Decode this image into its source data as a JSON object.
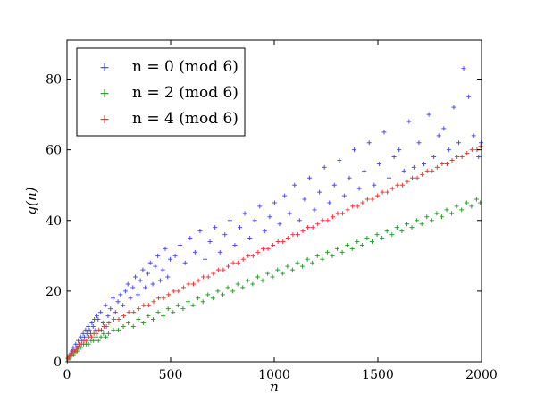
{
  "chart_data": {
    "type": "scatter",
    "title": "",
    "xlabel": "n",
    "ylabel": "g(n)",
    "xlim": [
      0,
      2000
    ],
    "ylim": [
      0,
      91
    ],
    "xticks": [
      0,
      500,
      1000,
      1500,
      2000
    ],
    "yticks": [
      0,
      20,
      40,
      60,
      80
    ],
    "xtick_labels": [
      "0",
      "500",
      "1000",
      "1500",
      "2000"
    ],
    "ytick_labels": [
      "0",
      "20",
      "40",
      "60",
      "80"
    ],
    "grid": false,
    "legend_position": "top-left",
    "marker": "+",
    "series": [
      {
        "name": "n = 0 (mod 6)",
        "color": "#4d4dff",
        "x": [
          6,
          12,
          18,
          24,
          30,
          36,
          42,
          48,
          54,
          60,
          66,
          72,
          78,
          84,
          90,
          96,
          102,
          108,
          114,
          120,
          126,
          132,
          138,
          144,
          150,
          162,
          174,
          186,
          198,
          210,
          222,
          234,
          246,
          258,
          270,
          282,
          294,
          306,
          318,
          330,
          342,
          354,
          366,
          378,
          390,
          402,
          414,
          426,
          438,
          450,
          462,
          474,
          486,
          498,
          522,
          546,
          570,
          594,
          618,
          642,
          666,
          690,
          714,
          738,
          762,
          786,
          810,
          834,
          858,
          882,
          906,
          930,
          954,
          978,
          1002,
          1026,
          1050,
          1074,
          1098,
          1122,
          1146,
          1170,
          1194,
          1218,
          1242,
          1266,
          1290,
          1314,
          1338,
          1362,
          1386,
          1410,
          1434,
          1458,
          1482,
          1506,
          1530,
          1554,
          1578,
          1602,
          1626,
          1650,
          1674,
          1698,
          1722,
          1746,
          1770,
          1794,
          1818,
          1842,
          1866,
          1890,
          1914,
          1938,
          1962,
          1986,
          1998
        ],
        "y": [
          1,
          2,
          2,
          3,
          4,
          3,
          5,
          4,
          6,
          5,
          7,
          6,
          8,
          7,
          9,
          8,
          10,
          9,
          8,
          11,
          10,
          12,
          9,
          13,
          12,
          14,
          11,
          16,
          13,
          15,
          18,
          14,
          17,
          19,
          16,
          20,
          22,
          18,
          21,
          24,
          19,
          23,
          26,
          21,
          25,
          28,
          22,
          27,
          30,
          23,
          26,
          32,
          24,
          29,
          30,
          33,
          28,
          35,
          31,
          37,
          29,
          34,
          38,
          31,
          36,
          40,
          33,
          38,
          42,
          35,
          40,
          44,
          37,
          41,
          45,
          39,
          47,
          42,
          50,
          40,
          46,
          52,
          43,
          48,
          55,
          45,
          50,
          57,
          47,
          52,
          60,
          49,
          54,
          62,
          50,
          56,
          65,
          52,
          58,
          60,
          54,
          68,
          55,
          62,
          56,
          70,
          58,
          64,
          66,
          60,
          72,
          62,
          83,
          75,
          64,
          58,
          62
        ]
      },
      {
        "name": "n = 2 (mod 6)",
        "color": "#2ca02c",
        "x": [
          2,
          8,
          14,
          20,
          26,
          32,
          38,
          44,
          50,
          56,
          68,
          80,
          92,
          104,
          116,
          128,
          140,
          152,
          164,
          176,
          188,
          200,
          224,
          248,
          272,
          296,
          320,
          344,
          368,
          392,
          416,
          440,
          464,
          488,
          512,
          536,
          560,
          584,
          608,
          632,
          656,
          680,
          704,
          728,
          752,
          776,
          800,
          824,
          848,
          872,
          896,
          920,
          944,
          968,
          992,
          1016,
          1040,
          1064,
          1088,
          1112,
          1136,
          1160,
          1184,
          1208,
          1232,
          1256,
          1280,
          1304,
          1328,
          1352,
          1376,
          1400,
          1424,
          1448,
          1472,
          1496,
          1520,
          1544,
          1568,
          1592,
          1616,
          1640,
          1664,
          1688,
          1712,
          1736,
          1760,
          1784,
          1808,
          1832,
          1856,
          1880,
          1904,
          1928,
          1952,
          1976,
          1994
        ],
        "y": [
          0,
          1,
          1,
          2,
          2,
          2,
          3,
          3,
          3,
          4,
          4,
          5,
          5,
          5,
          6,
          6,
          7,
          6,
          7,
          8,
          7,
          8,
          9,
          9,
          10,
          11,
          10,
          12,
          11,
          13,
          12,
          14,
          13,
          15,
          14,
          16,
          15,
          17,
          16,
          18,
          17,
          19,
          18,
          20,
          19,
          21,
          20,
          22,
          21,
          23,
          22,
          24,
          23,
          25,
          24,
          26,
          25,
          27,
          26,
          28,
          27,
          29,
          28,
          30,
          29,
          31,
          30,
          32,
          31,
          33,
          32,
          34,
          33,
          35,
          34,
          36,
          35,
          37,
          36,
          38,
          37,
          39,
          38,
          40,
          39,
          41,
          40,
          42,
          41,
          43,
          42,
          44,
          43,
          45,
          44,
          46,
          45
        ]
      },
      {
        "name": "n = 4 (mod 6)",
        "color": "#ff3333",
        "x": [
          4,
          10,
          16,
          22,
          28,
          34,
          40,
          46,
          52,
          58,
          70,
          82,
          94,
          106,
          118,
          130,
          142,
          154,
          166,
          178,
          190,
          202,
          226,
          250,
          274,
          298,
          322,
          346,
          370,
          394,
          418,
          442,
          466,
          490,
          514,
          538,
          562,
          586,
          610,
          634,
          658,
          682,
          706,
          730,
          754,
          778,
          802,
          826,
          850,
          874,
          898,
          922,
          946,
          970,
          994,
          1018,
          1042,
          1066,
          1090,
          1114,
          1138,
          1162,
          1186,
          1210,
          1234,
          1258,
          1282,
          1306,
          1330,
          1354,
          1378,
          1402,
          1426,
          1450,
          1474,
          1498,
          1522,
          1546,
          1570,
          1594,
          1618,
          1642,
          1666,
          1690,
          1714,
          1738,
          1762,
          1786,
          1810,
          1834,
          1858,
          1882,
          1906,
          1930,
          1954,
          1978,
          1996
        ],
        "y": [
          1,
          1,
          2,
          2,
          3,
          3,
          3,
          4,
          4,
          5,
          5,
          6,
          6,
          7,
          7,
          8,
          8,
          9,
          9,
          10,
          10,
          11,
          12,
          12,
          13,
          14,
          14,
          15,
          16,
          16,
          17,
          18,
          18,
          19,
          20,
          20,
          21,
          22,
          22,
          23,
          24,
          24,
          25,
          26,
          26,
          27,
          28,
          28,
          29,
          30,
          30,
          31,
          32,
          32,
          33,
          34,
          34,
          35,
          36,
          36,
          37,
          38,
          38,
          39,
          40,
          40,
          41,
          42,
          42,
          43,
          44,
          44,
          45,
          46,
          46,
          47,
          48,
          48,
          49,
          50,
          50,
          51,
          52,
          52,
          53,
          54,
          54,
          55,
          56,
          56,
          57,
          58,
          58,
          59,
          60,
          60,
          61
        ]
      }
    ],
    "legend": {
      "entries": [
        {
          "label": "n = 0 (mod 6)",
          "color": "#4d4dff"
        },
        {
          "label": "n = 2 (mod 6)",
          "color": "#2ca02c"
        },
        {
          "label": "n = 4 (mod 6)",
          "color": "#ff3333"
        }
      ]
    }
  }
}
